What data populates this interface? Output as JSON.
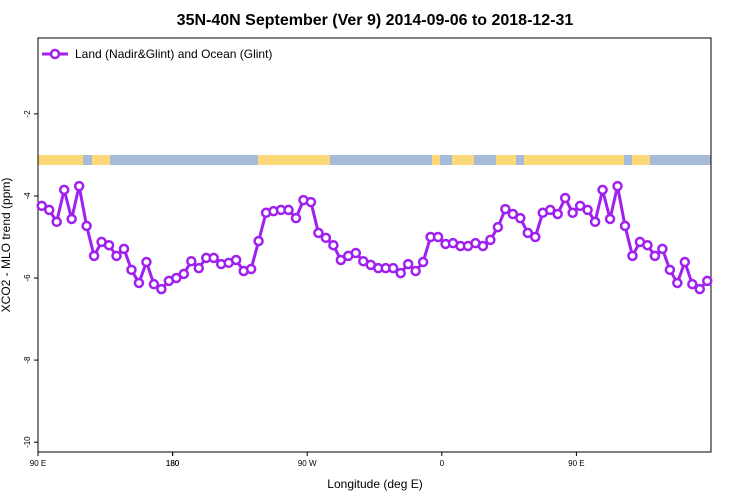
{
  "chart_data": {
    "type": "line",
    "title": "35N-40N September (Ver 9)   2014-09-06 to 2018-12-31",
    "x_label": "Longitude (deg E)",
    "y_label": "XCO2 - MLO trend (ppm)",
    "x": [
      92.5,
      97.5,
      102.5,
      107.5,
      112.5,
      117.5,
      122.5,
      127.5,
      132.5,
      137.5,
      142.5,
      147.5,
      152.5,
      157.5,
      162.5,
      167.5,
      172.5,
      177.5,
      182.5,
      187.5,
      192.5,
      197.5,
      202.5,
      207.5,
      212.5,
      217.5,
      222.5,
      227.5,
      232.5,
      237.5,
      242.5,
      247.5,
      252.5,
      257.5,
      262.5,
      267.5,
      272.5,
      277.5,
      282.5,
      287.5,
      292.5,
      297.5,
      302.5,
      307.5,
      312.5,
      317.5,
      322.5,
      327.5,
      332.5,
      337.5,
      342.5,
      347.5,
      352.5,
      357.5,
      362.5,
      367.5,
      372.5,
      377.5,
      382.5,
      387.5,
      392.5,
      397.5,
      402.5,
      407.5,
      412.5,
      417.5,
      422.5,
      427.5,
      432.5,
      437.5,
      442.5,
      447.5,
      452.5,
      457.5,
      462.5,
      467.5,
      472.5,
      477.5,
      482.5,
      487.5,
      492.5,
      497.5,
      502.5,
      507.5,
      512.5,
      517.5,
      522.5,
      527.5,
      532.5,
      537.5
    ],
    "series": [
      {
        "name": "Land (Nadir&Glint) and Ocean (Glint)",
        "color": "#a020f0",
        "values": [
          -4.24,
          -4.34,
          -4.63,
          -3.85,
          -4.56,
          -3.76,
          -4.73,
          -5.46,
          -5.12,
          -5.2,
          -5.46,
          -5.29,
          -5.8,
          -6.12,
          -5.61,
          -6.15,
          -6.27,
          -6.07,
          -6.0,
          -5.9,
          -5.59,
          -5.76,
          -5.51,
          -5.51,
          -5.66,
          -5.63,
          -5.56,
          -5.83,
          -5.78,
          -5.1,
          -4.41,
          -4.37,
          -4.34,
          -4.34,
          -4.54,
          -4.1,
          -4.15,
          -4.9,
          -5.02,
          -5.2,
          -5.56,
          -5.46,
          -5.39,
          -5.59,
          -5.68,
          -5.76,
          -5.76,
          -5.76,
          -5.88,
          -5.66,
          -5.83,
          -5.61,
          -5.0,
          -5.0,
          -5.17,
          -5.15,
          -5.22,
          -5.22,
          -5.15,
          -5.22,
          -5.07,
          -4.76,
          -4.32,
          -4.44,
          -4.54,
          -4.9,
          -5.0,
          -4.41,
          -4.34,
          -4.44,
          -4.05,
          -4.41,
          -4.24,
          -4.34,
          -4.63,
          -3.85,
          -4.56,
          -3.76,
          -4.73,
          -5.46,
          -5.12,
          -5.2,
          -5.46,
          -5.29,
          -5.8,
          -6.12,
          -5.61,
          -6.15,
          -6.27,
          -6.07
        ]
      }
    ],
    "xlim": [
      90,
      540
    ],
    "xticks": [
      {
        "value": 90,
        "label": "90 E"
      },
      180,
      {
        "value": 270,
        "label": "90 W"
      },
      {
        "value": 360,
        "label": "0"
      },
      {
        "value": 450,
        "label": "90 E"
      },
      180.0001
    ],
    "ylim": [
      -10.24,
      -0.15
    ],
    "yticks": [
      -10,
      -8,
      -6,
      -4,
      -2
    ],
    "legend": "top-left",
    "grid": false
  }
}
